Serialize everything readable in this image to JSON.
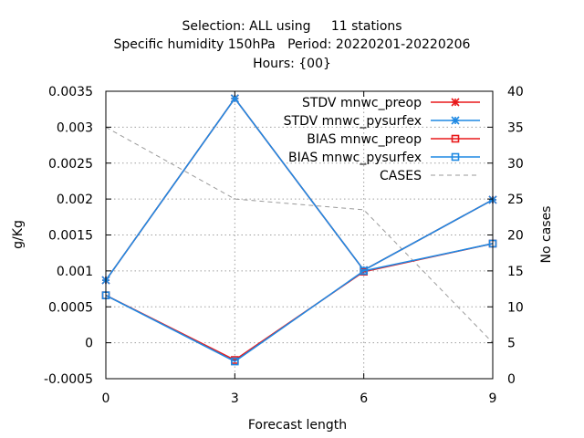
{
  "header": {
    "title_line1": "Selection: ALL using     11 stations",
    "title_line2": "Specific humidity 150hPa   Period: 20220201-20220206",
    "title_line3": "Hours: {00}"
  },
  "chart_data": {
    "type": "line",
    "xlabel": "Forecast length",
    "ylabel": "g/Kg",
    "y2label": "No cases",
    "x": [
      0,
      3,
      6,
      9
    ],
    "xticks": [
      "0",
      "3",
      "6",
      "9"
    ],
    "yticks": [
      "-0.0005",
      "0",
      "0.0005",
      "0.001",
      "0.0015",
      "0.002",
      "0.0025",
      "0.003",
      "0.0035"
    ],
    "y2ticks": [
      "0",
      "5",
      "10",
      "15",
      "20",
      "25",
      "30",
      "35",
      "40"
    ],
    "xlim": [
      0,
      9
    ],
    "ylim": [
      -0.0005,
      0.0035
    ],
    "y2lim": [
      0,
      40
    ],
    "grid": true,
    "legend_position": "top-right",
    "series": [
      {
        "name": "STDV mnwc_preop",
        "axis": "y1",
        "marker": "x-star",
        "color": "#e8191b",
        "values": [
          0.00087,
          0.0034,
          0.00101,
          0.00199
        ]
      },
      {
        "name": "STDV mnwc_pysurfex",
        "axis": "y1",
        "marker": "x-star",
        "color": "#1f89e3",
        "values": [
          0.00087,
          0.0034,
          0.00101,
          0.00199
        ]
      },
      {
        "name": "BIAS mnwc_preop",
        "axis": "y1",
        "marker": "square",
        "color": "#e8191b",
        "values": [
          0.00066,
          -0.00024,
          0.00099,
          0.00138
        ]
      },
      {
        "name": "BIAS mnwc_pysurfex",
        "axis": "y1",
        "marker": "square",
        "color": "#1f89e3",
        "values": [
          0.00066,
          -0.00026,
          0.001,
          0.00138
        ]
      },
      {
        "name": "CASES",
        "axis": "y2",
        "marker": "none",
        "color": "#9a9a9a",
        "dashed": true,
        "values": [
          35,
          25,
          23.5,
          5
        ]
      }
    ]
  }
}
